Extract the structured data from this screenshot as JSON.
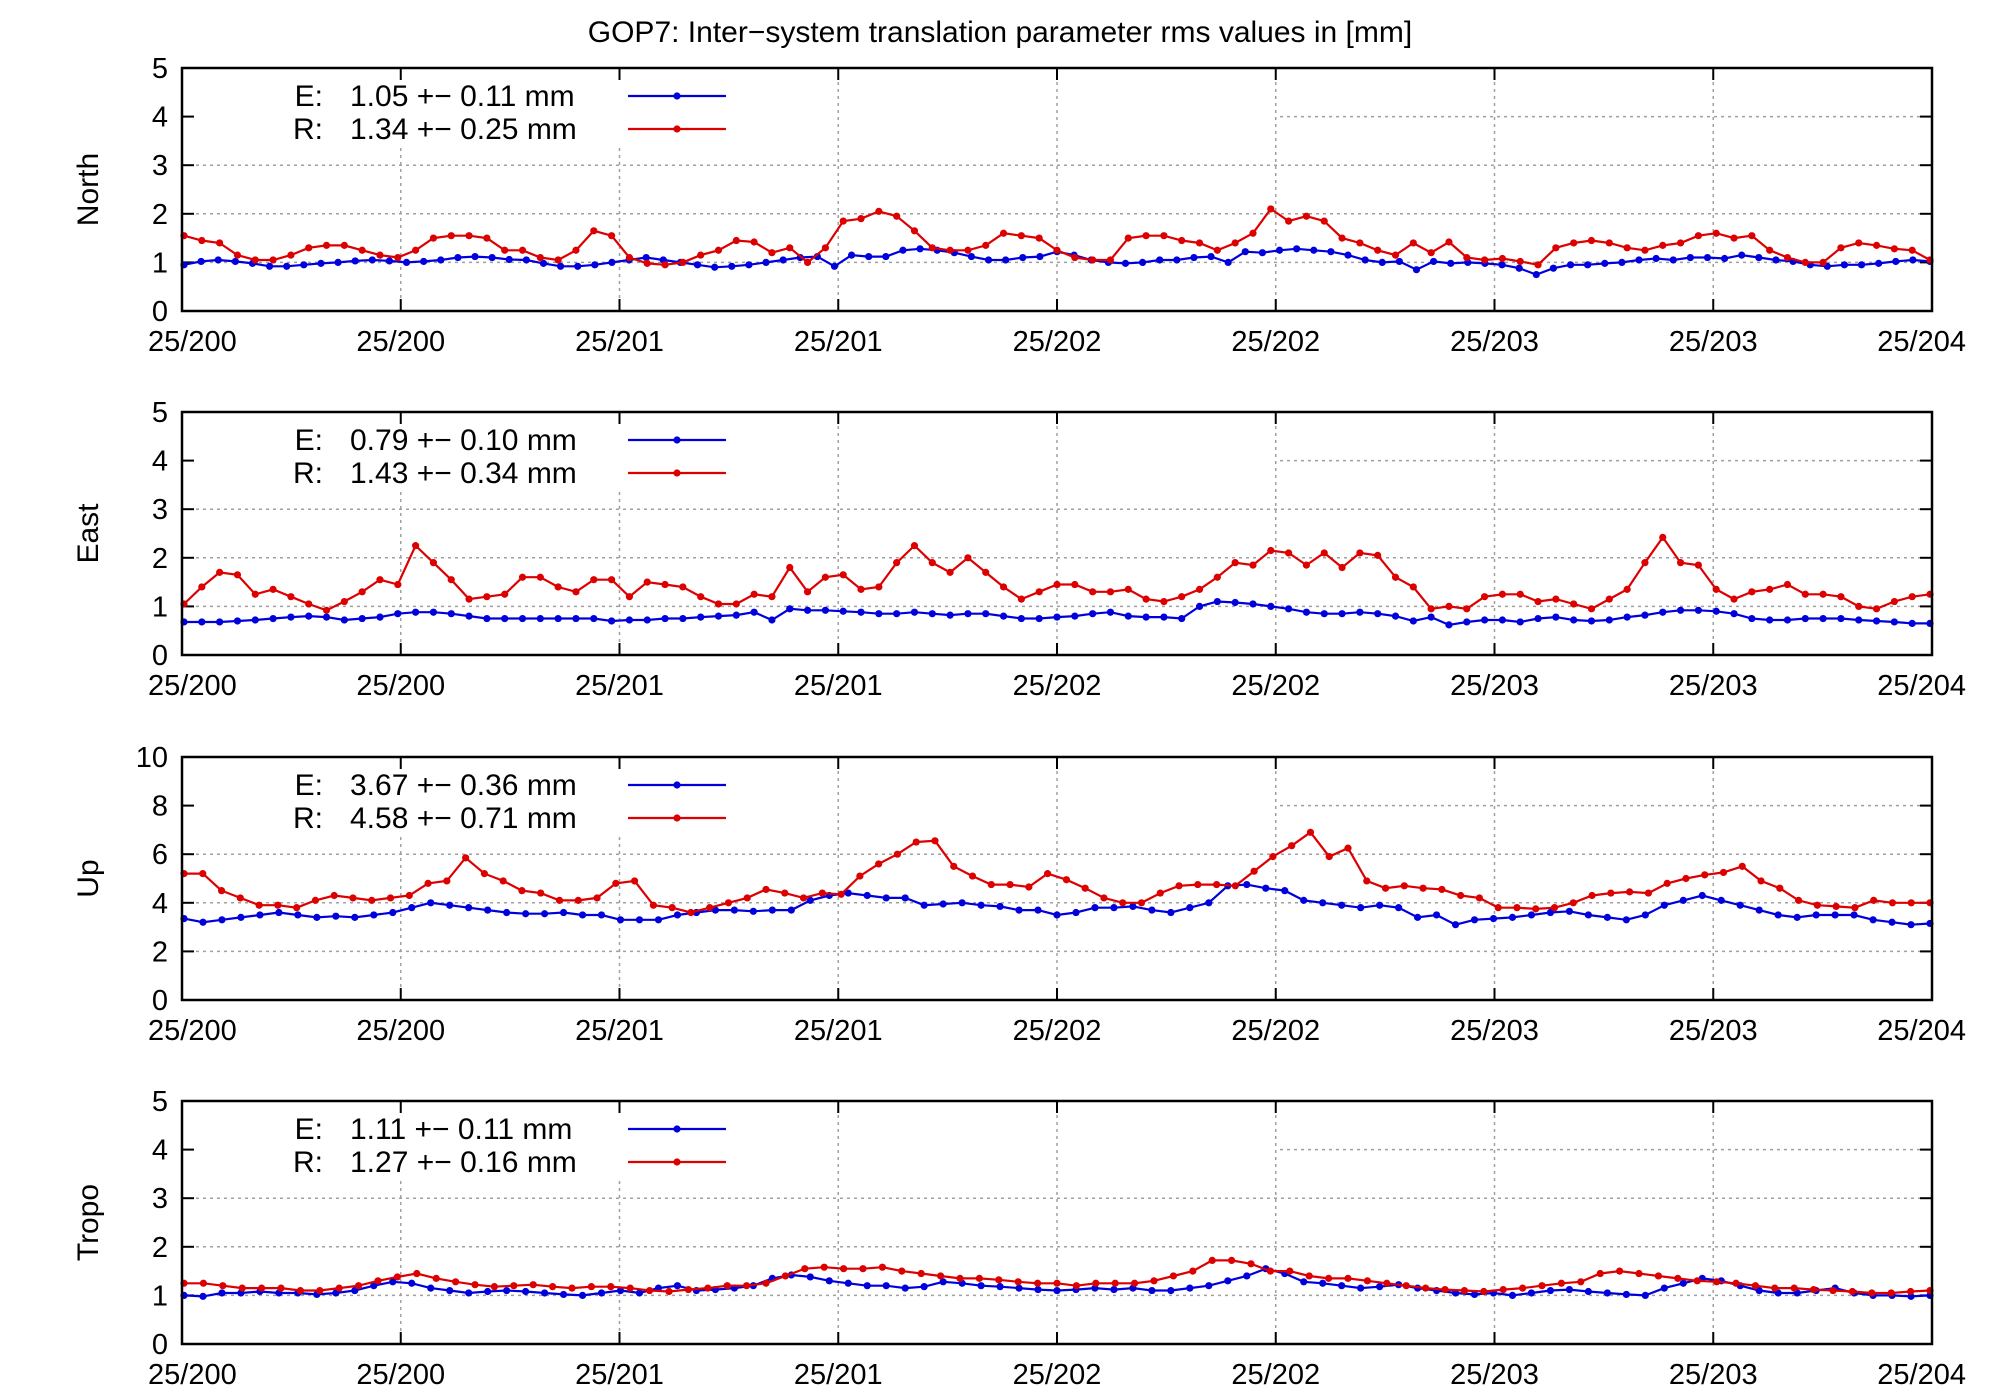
{
  "title": "GOP7: Inter−system translation parameter rms values in [mm]",
  "colors": {
    "E": "#0000dd",
    "R": "#dd0000",
    "axis": "#000000",
    "grid": "#a0a0a0"
  },
  "chart_data": [
    {
      "type": "line",
      "ylabel": "North",
      "ylim": [
        0,
        5
      ],
      "yticks": [
        0,
        1,
        2,
        3,
        4,
        5
      ],
      "x_tick_labels": [
        "25/200",
        "25/200",
        "25/201",
        "25/201",
        "25/202",
        "25/202",
        "25/203",
        "25/203",
        "25/204"
      ],
      "grid": true,
      "legend_position": "top-left",
      "series": [
        {
          "name": "E",
          "legend_label": "E:",
          "legend_value": "1.05 +− 0.11 mm",
          "values": [
            0.95,
            1.02,
            1.05,
            1.02,
            0.98,
            0.92,
            0.92,
            0.95,
            0.98,
            1.0,
            1.03,
            1.05,
            1.03,
            1.0,
            1.02,
            1.05,
            1.1,
            1.12,
            1.1,
            1.06,
            1.05,
            0.98,
            0.92,
            0.92,
            0.95,
            1.0,
            1.05,
            1.1,
            1.05,
            1.0,
            0.95,
            0.9,
            0.92,
            0.95,
            1.0,
            1.05,
            1.1,
            1.12,
            0.92,
            1.15,
            1.12,
            1.12,
            1.25,
            1.28,
            1.25,
            1.2,
            1.12,
            1.05,
            1.05,
            1.1,
            1.12,
            1.22,
            1.15,
            1.05,
            1.0,
            0.98,
            1.0,
            1.05,
            1.05,
            1.1,
            1.12,
            1.0,
            1.22,
            1.2,
            1.25,
            1.28,
            1.25,
            1.22,
            1.15,
            1.05,
            1.0,
            1.02,
            0.85,
            1.02,
            0.98,
            1.0,
            0.98,
            0.95,
            0.88,
            0.75,
            0.88,
            0.95,
            0.95,
            0.98,
            1.0,
            1.05,
            1.08,
            1.05,
            1.1,
            1.1,
            1.08,
            1.15,
            1.1,
            1.05,
            1.02,
            0.95,
            0.92,
            0.95,
            0.95,
            0.98,
            1.02,
            1.05,
            1.02
          ]
        },
        {
          "name": "R",
          "legend_label": "R:",
          "legend_value": "1.34 +− 0.25 mm",
          "values": [
            1.55,
            1.45,
            1.4,
            1.15,
            1.05,
            1.05,
            1.15,
            1.3,
            1.35,
            1.35,
            1.25,
            1.15,
            1.1,
            1.25,
            1.5,
            1.55,
            1.55,
            1.5,
            1.25,
            1.25,
            1.1,
            1.05,
            1.25,
            1.65,
            1.55,
            1.1,
            0.98,
            0.95,
            1.0,
            1.15,
            1.25,
            1.45,
            1.42,
            1.2,
            1.3,
            1.0,
            1.3,
            1.85,
            1.9,
            2.05,
            1.95,
            1.65,
            1.3,
            1.25,
            1.25,
            1.35,
            1.6,
            1.55,
            1.5,
            1.25,
            1.1,
            1.05,
            1.05,
            1.5,
            1.55,
            1.55,
            1.45,
            1.4,
            1.25,
            1.4,
            1.6,
            2.1,
            1.85,
            1.95,
            1.85,
            1.5,
            1.4,
            1.25,
            1.15,
            1.4,
            1.2,
            1.42,
            1.1,
            1.05,
            1.08,
            1.02,
            0.95,
            1.3,
            1.4,
            1.45,
            1.4,
            1.3,
            1.25,
            1.35,
            1.4,
            1.55,
            1.6,
            1.5,
            1.55,
            1.25,
            1.1,
            1.0,
            1.0,
            1.3,
            1.4,
            1.35,
            1.28,
            1.25,
            1.05
          ]
        }
      ]
    },
    {
      "type": "line",
      "ylabel": "East",
      "ylim": [
        0,
        5
      ],
      "yticks": [
        0,
        1,
        2,
        3,
        4,
        5
      ],
      "x_tick_labels": [
        "25/200",
        "25/200",
        "25/201",
        "25/201",
        "25/202",
        "25/202",
        "25/203",
        "25/203",
        "25/204"
      ],
      "grid": true,
      "legend_position": "top-left",
      "series": [
        {
          "name": "E",
          "legend_label": "E:",
          "legend_value": "0.79 +− 0.10 mm",
          "values": [
            0.68,
            0.68,
            0.68,
            0.7,
            0.72,
            0.75,
            0.78,
            0.8,
            0.78,
            0.72,
            0.75,
            0.78,
            0.85,
            0.88,
            0.88,
            0.85,
            0.8,
            0.75,
            0.75,
            0.75,
            0.75,
            0.75,
            0.75,
            0.75,
            0.7,
            0.72,
            0.72,
            0.75,
            0.75,
            0.78,
            0.8,
            0.82,
            0.88,
            0.72,
            0.95,
            0.92,
            0.92,
            0.9,
            0.88,
            0.85,
            0.85,
            0.88,
            0.85,
            0.82,
            0.85,
            0.85,
            0.8,
            0.75,
            0.75,
            0.78,
            0.8,
            0.85,
            0.88,
            0.8,
            0.78,
            0.78,
            0.75,
            1.0,
            1.1,
            1.08,
            1.05,
            1.0,
            0.95,
            0.88,
            0.85,
            0.85,
            0.88,
            0.85,
            0.8,
            0.7,
            0.78,
            0.62,
            0.68,
            0.72,
            0.72,
            0.68,
            0.75,
            0.78,
            0.72,
            0.7,
            0.72,
            0.78,
            0.82,
            0.88,
            0.92,
            0.92,
            0.9,
            0.85,
            0.75,
            0.72,
            0.72,
            0.75,
            0.75,
            0.75,
            0.72,
            0.7,
            0.68,
            0.65,
            0.65
          ]
        },
        {
          "name": "R",
          "legend_label": "R:",
          "legend_value": "1.43 +− 0.34 mm",
          "values": [
            1.05,
            1.4,
            1.7,
            1.65,
            1.25,
            1.35,
            1.2,
            1.05,
            0.92,
            1.1,
            1.3,
            1.55,
            1.45,
            2.25,
            1.9,
            1.55,
            1.15,
            1.2,
            1.25,
            1.6,
            1.6,
            1.4,
            1.3,
            1.55,
            1.55,
            1.2,
            1.5,
            1.45,
            1.4,
            1.2,
            1.05,
            1.05,
            1.25,
            1.2,
            1.8,
            1.3,
            1.6,
            1.65,
            1.35,
            1.4,
            1.9,
            2.25,
            1.9,
            1.7,
            2.0,
            1.7,
            1.4,
            1.15,
            1.3,
            1.45,
            1.45,
            1.3,
            1.3,
            1.35,
            1.15,
            1.1,
            1.2,
            1.35,
            1.6,
            1.9,
            1.85,
            2.15,
            2.1,
            1.85,
            2.1,
            1.8,
            2.1,
            2.05,
            1.6,
            1.4,
            0.95,
            1.0,
            0.95,
            1.2,
            1.25,
            1.25,
            1.1,
            1.15,
            1.05,
            0.95,
            1.15,
            1.35,
            1.9,
            2.42,
            1.9,
            1.85,
            1.35,
            1.15,
            1.3,
            1.35,
            1.45,
            1.25,
            1.25,
            1.2,
            1.0,
            0.95,
            1.1,
            1.2,
            1.25
          ]
        }
      ]
    },
    {
      "type": "line",
      "ylabel": "Up",
      "ylim": [
        0,
        10
      ],
      "yticks": [
        0,
        2,
        4,
        6,
        8,
        10
      ],
      "x_tick_labels": [
        "25/200",
        "25/200",
        "25/201",
        "25/201",
        "25/202",
        "25/202",
        "25/203",
        "25/203",
        "25/204"
      ],
      "grid": true,
      "legend_position": "top-left",
      "series": [
        {
          "name": "E",
          "legend_label": "E:",
          "legend_value": "3.67 +− 0.36 mm",
          "values": [
            3.35,
            3.2,
            3.3,
            3.4,
            3.5,
            3.6,
            3.5,
            3.4,
            3.45,
            3.4,
            3.5,
            3.6,
            3.8,
            4.0,
            3.9,
            3.8,
            3.7,
            3.6,
            3.55,
            3.55,
            3.6,
            3.5,
            3.5,
            3.3,
            3.3,
            3.3,
            3.5,
            3.6,
            3.7,
            3.7,
            3.65,
            3.7,
            3.7,
            4.1,
            4.3,
            4.4,
            4.3,
            4.2,
            4.2,
            3.9,
            3.95,
            4.0,
            3.9,
            3.85,
            3.7,
            3.7,
            3.5,
            3.6,
            3.8,
            3.8,
            3.85,
            3.7,
            3.6,
            3.8,
            4.0,
            4.7,
            4.75,
            4.6,
            4.5,
            4.1,
            4.0,
            3.9,
            3.8,
            3.9,
            3.8,
            3.4,
            3.5,
            3.1,
            3.3,
            3.35,
            3.4,
            3.5,
            3.6,
            3.65,
            3.5,
            3.4,
            3.3,
            3.5,
            3.9,
            4.1,
            4.3,
            4.1,
            3.9,
            3.7,
            3.5,
            3.4,
            3.5,
            3.5,
            3.5,
            3.3,
            3.2,
            3.1,
            3.15
          ]
        },
        {
          "name": "R",
          "legend_label": "R:",
          "legend_value": "4.58 +− 0.71 mm",
          "values": [
            5.2,
            5.2,
            4.5,
            4.2,
            3.9,
            3.9,
            3.8,
            4.1,
            4.3,
            4.2,
            4.1,
            4.2,
            4.3,
            4.8,
            4.9,
            5.85,
            5.2,
            4.9,
            4.5,
            4.4,
            4.1,
            4.1,
            4.2,
            4.8,
            4.9,
            3.9,
            3.8,
            3.6,
            3.8,
            4.0,
            4.2,
            4.55,
            4.4,
            4.2,
            4.4,
            4.35,
            5.1,
            5.6,
            6.0,
            6.5,
            6.55,
            5.5,
            5.1,
            4.75,
            4.75,
            4.65,
            5.2,
            4.95,
            4.6,
            4.2,
            4.0,
            4.0,
            4.4,
            4.7,
            4.75,
            4.75,
            4.7,
            5.3,
            5.9,
            6.35,
            6.9,
            5.9,
            6.25,
            4.9,
            4.6,
            4.7,
            4.6,
            4.55,
            4.3,
            4.2,
            3.8,
            3.8,
            3.75,
            3.8,
            4.0,
            4.3,
            4.4,
            4.45,
            4.4,
            4.8,
            5.0,
            5.15,
            5.25,
            5.5,
            4.9,
            4.6,
            4.1,
            3.9,
            3.85,
            3.8,
            4.1,
            4.0,
            4.0,
            4.0
          ]
        }
      ]
    },
    {
      "type": "line",
      "ylabel": "Tropo",
      "ylim": [
        0,
        5
      ],
      "yticks": [
        0,
        1,
        2,
        3,
        4,
        5
      ],
      "x_tick_labels": [
        "25/200",
        "25/200",
        "25/201",
        "25/201",
        "25/202",
        "25/202",
        "25/203",
        "25/203",
        "25/204"
      ],
      "grid": true,
      "legend_position": "top-left",
      "series": [
        {
          "name": "E",
          "legend_label": "E:",
          "legend_value": "1.11 +− 0.11 mm",
          "values": [
            1.0,
            0.98,
            1.05,
            1.05,
            1.08,
            1.05,
            1.05,
            1.02,
            1.05,
            1.1,
            1.2,
            1.28,
            1.25,
            1.15,
            1.1,
            1.05,
            1.08,
            1.1,
            1.08,
            1.05,
            1.02,
            1.0,
            1.05,
            1.1,
            1.05,
            1.15,
            1.2,
            1.1,
            1.12,
            1.15,
            1.2,
            1.35,
            1.42,
            1.38,
            1.3,
            1.25,
            1.2,
            1.2,
            1.15,
            1.18,
            1.28,
            1.25,
            1.2,
            1.18,
            1.15,
            1.12,
            1.1,
            1.12,
            1.15,
            1.12,
            1.15,
            1.1,
            1.1,
            1.15,
            1.2,
            1.3,
            1.4,
            1.55,
            1.45,
            1.28,
            1.25,
            1.2,
            1.15,
            1.18,
            1.22,
            1.15,
            1.1,
            1.05,
            1.02,
            1.05,
            1.0,
            1.05,
            1.1,
            1.12,
            1.08,
            1.05,
            1.02,
            1.0,
            1.15,
            1.25,
            1.35,
            1.3,
            1.2,
            1.1,
            1.05,
            1.05,
            1.1,
            1.15,
            1.05,
            1.0,
            1.0,
            0.98,
            1.0
          ]
        },
        {
          "name": "R",
          "legend_label": "R:",
          "legend_value": "1.27 +− 0.16 mm",
          "values": [
            1.25,
            1.25,
            1.2,
            1.15,
            1.15,
            1.15,
            1.1,
            1.1,
            1.15,
            1.2,
            1.3,
            1.38,
            1.45,
            1.35,
            1.28,
            1.22,
            1.18,
            1.2,
            1.22,
            1.18,
            1.15,
            1.18,
            1.18,
            1.15,
            1.1,
            1.08,
            1.12,
            1.15,
            1.2,
            1.2,
            1.25,
            1.4,
            1.55,
            1.58,
            1.55,
            1.55,
            1.58,
            1.5,
            1.45,
            1.4,
            1.35,
            1.35,
            1.32,
            1.28,
            1.25,
            1.25,
            1.2,
            1.25,
            1.25,
            1.25,
            1.3,
            1.4,
            1.5,
            1.72,
            1.72,
            1.65,
            1.5,
            1.5,
            1.4,
            1.35,
            1.35,
            1.3,
            1.25,
            1.2,
            1.15,
            1.12,
            1.1,
            1.08,
            1.12,
            1.15,
            1.2,
            1.25,
            1.28,
            1.45,
            1.5,
            1.45,
            1.4,
            1.35,
            1.3,
            1.28,
            1.25,
            1.2,
            1.15,
            1.15,
            1.12,
            1.1,
            1.08,
            1.05,
            1.05,
            1.08,
            1.1
          ]
        }
      ]
    }
  ]
}
